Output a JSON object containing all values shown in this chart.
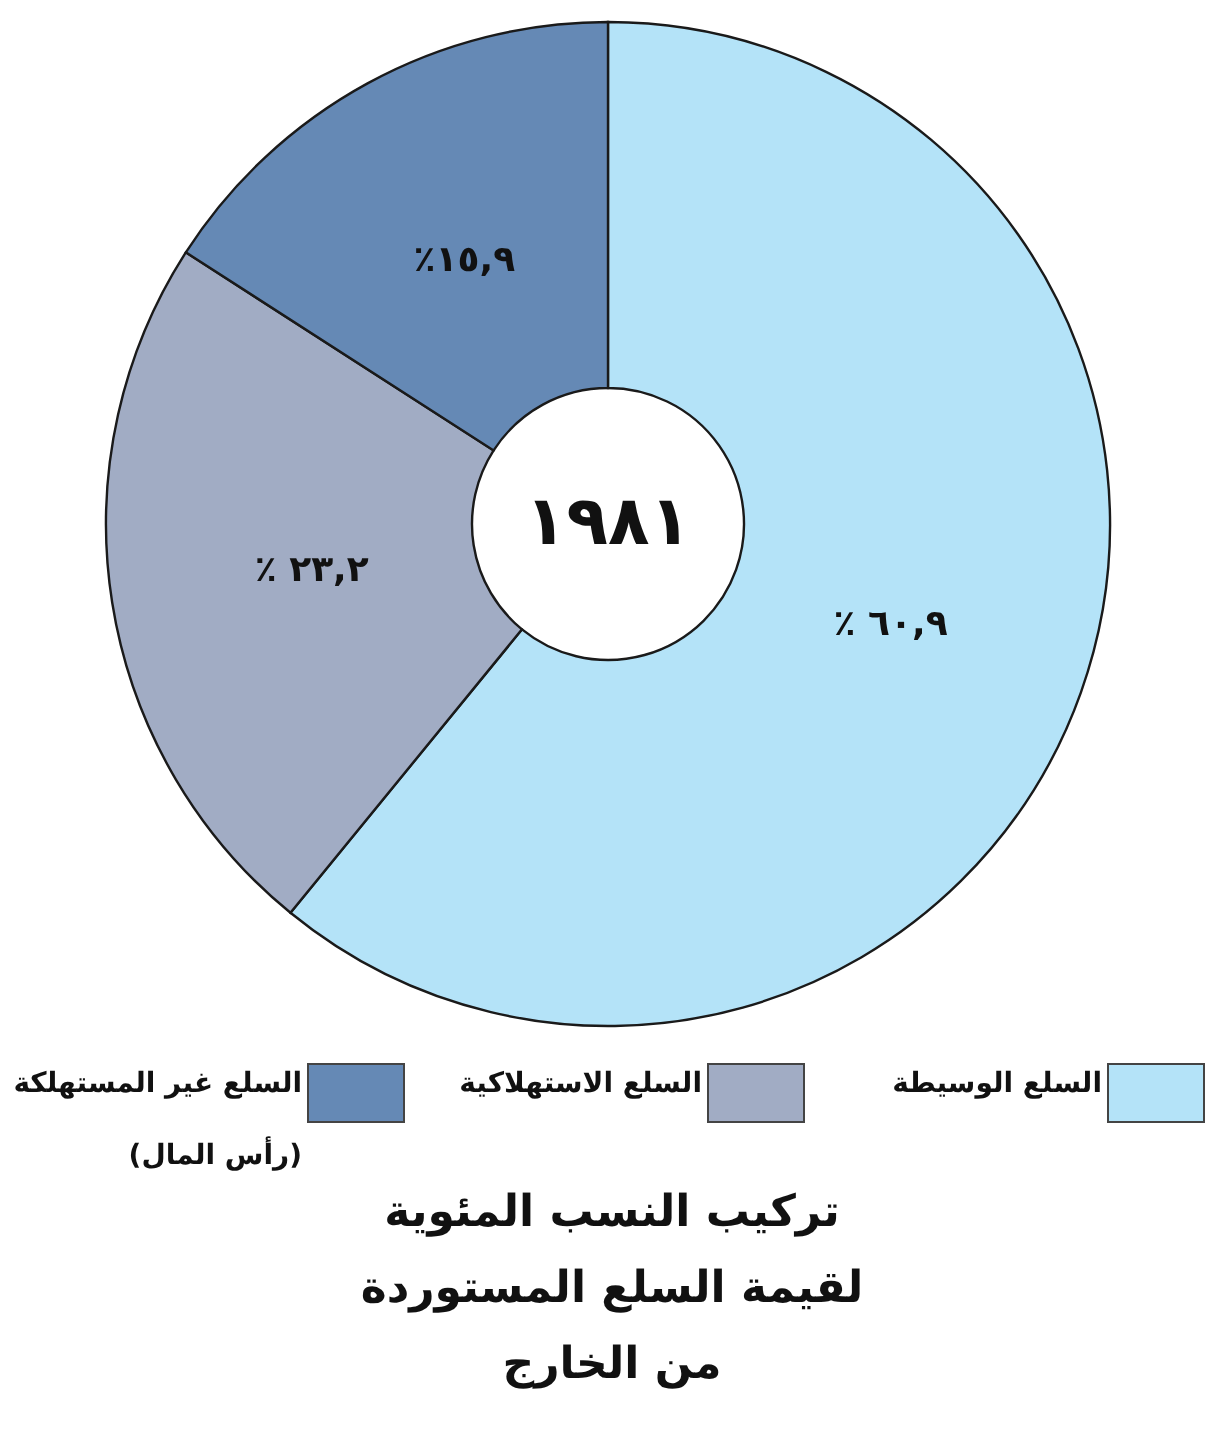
{
  "chart_data": {
    "type": "donut",
    "title": "تركيب النسب المئوية\nلقيمة السلع المستوردة\nمن الخارج",
    "categories": [
      "السلع الوسيطة",
      "السلع الاستهلاكية",
      "السلع غير المستهلكة\n(رأس المال)"
    ],
    "values": [
      60.9,
      23.2,
      15.9
    ],
    "colors": [
      "#b4e3f8",
      "#a1acc4",
      "#6589b5"
    ],
    "value_labels": [
      "٪ ٦٠,٩",
      "٪ ٢٣,٢",
      "٪١٥,٩"
    ],
    "annotations": [
      "١٩٨١"
    ],
    "legend": "bottom"
  }
}
